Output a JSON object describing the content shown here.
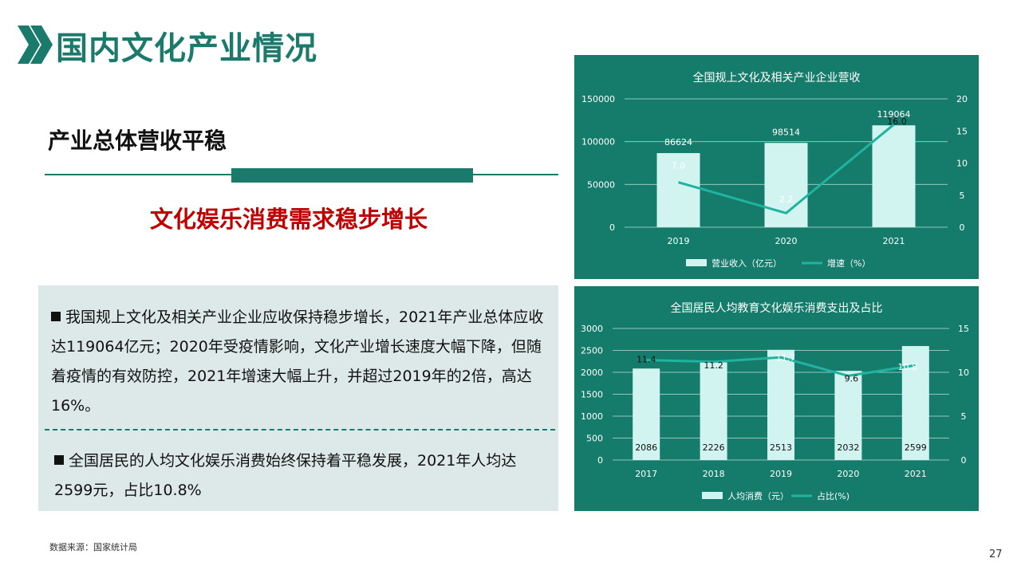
{
  "header": {
    "title": "国内文化产业情况"
  },
  "section": {
    "subtitle": "产业总体营收平稳",
    "highlight": "文化娱乐消费需求稳步增长"
  },
  "panel": {
    "bullet1": "我国规上文化及相关产业企业应收保持稳步增长，2021年产业总体应收达119064亿元；2020年受疫情影响，文化产业增长速度大幅下降，但随着疫情的有效防控，2021年增速大幅上升，并超过2019年的2倍，高达16%。",
    "bullet2": "全国居民的人均文化娱乐消费始终保持着平稳发展，2021年人均达2599元，占比10.8%"
  },
  "footer": {
    "source": "数据来源：国家统计局",
    "page": "27"
  },
  "colors": {
    "teal": "#157c6c",
    "bar": "#d2f4f0",
    "line": "#1fb3a0",
    "accent": "#c00000",
    "panel": "#dde9e8"
  },
  "chart_data": [
    {
      "type": "bar",
      "title": "全国规上文化及相关产业企业营收",
      "categories": [
        "2019",
        "2020",
        "2021"
      ],
      "series": [
        {
          "name": "营业收入（亿元）",
          "type": "bar",
          "axis": "left",
          "values": [
            86624,
            98514,
            119064
          ]
        },
        {
          "name": "增速（%）",
          "type": "line",
          "axis": "right",
          "values": [
            7.0,
            2.2,
            16.0
          ]
        }
      ],
      "ylim_left": [
        0,
        150000
      ],
      "yticks_left": [
        "0",
        "50000",
        "100000",
        "150000"
      ],
      "ylim_right": [
        0,
        20
      ],
      "yticks_right": [
        "0",
        "5",
        "10",
        "15",
        "20"
      ],
      "bar_labels": [
        "86624",
        "98514",
        "119064"
      ],
      "line_labels": [
        "7.0",
        "2.2",
        "16.0"
      ],
      "grid": true,
      "legend": "bottom"
    },
    {
      "type": "bar",
      "title": "全国居民人均教育文化娱乐消费支出及占比",
      "categories": [
        "2017",
        "2018",
        "2019",
        "2020",
        "2021"
      ],
      "series": [
        {
          "name": "人均消费（元）",
          "type": "bar",
          "axis": "left",
          "values": [
            2086,
            2226,
            2513,
            2032,
            2599
          ]
        },
        {
          "name": "占比(%)",
          "type": "line",
          "axis": "right",
          "values": [
            11.4,
            11.2,
            11.7,
            9.6,
            10.8
          ]
        }
      ],
      "ylim_left": [
        0,
        3000
      ],
      "yticks_left": [
        "0",
        "500",
        "1000",
        "1500",
        "2000",
        "2500",
        "3000"
      ],
      "ylim_right": [
        0,
        15
      ],
      "yticks_right": [
        "0",
        "5",
        "10",
        "15"
      ],
      "bar_labels": [
        "2086",
        "2226",
        "2513",
        "2032",
        "2599"
      ],
      "line_labels": [
        "11.4",
        "11.2",
        "11.7",
        "9.6",
        "10.8"
      ],
      "grid": true,
      "legend": "bottom"
    }
  ]
}
